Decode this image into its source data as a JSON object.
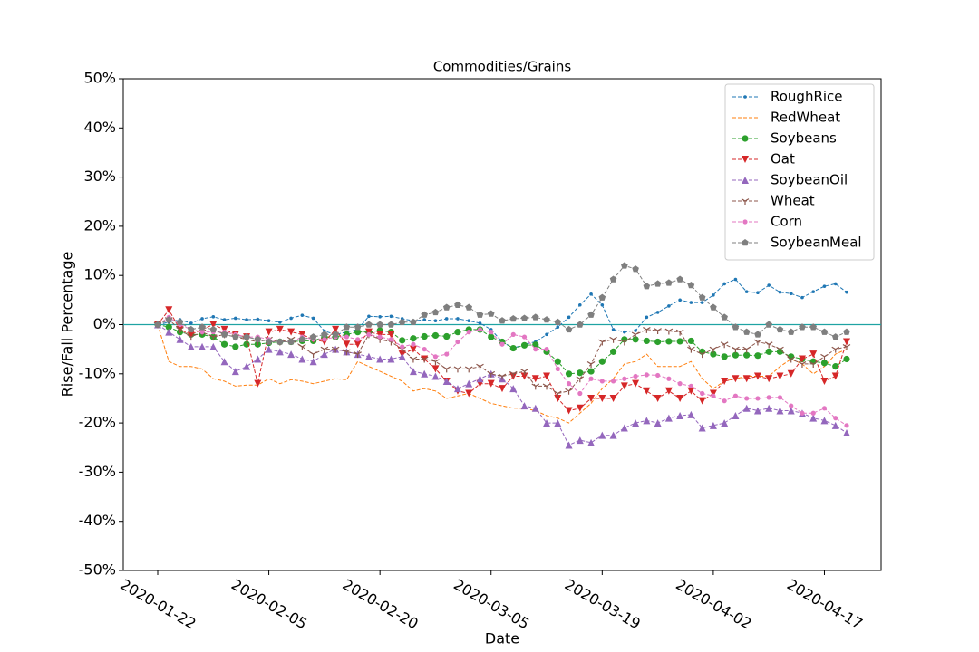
{
  "chart_data": {
    "type": "line",
    "title": "Commodities/Grains",
    "x_label": "Date",
    "y_label": "Rise/Fall Percentage",
    "categories": [
      "2020-01-22",
      null,
      null,
      null,
      null,
      null,
      null,
      null,
      null,
      null,
      "2020-02-05",
      null,
      null,
      null,
      null,
      null,
      null,
      null,
      null,
      null,
      "2020-02-20",
      null,
      null,
      null,
      null,
      null,
      null,
      null,
      null,
      null,
      "2020-03-05",
      null,
      null,
      null,
      null,
      null,
      null,
      null,
      null,
      null,
      "2020-03-19",
      null,
      null,
      null,
      null,
      null,
      null,
      null,
      null,
      null,
      "2020-04-02",
      null,
      null,
      null,
      null,
      null,
      null,
      null,
      null,
      null,
      "2020-04-17",
      null,
      null
    ],
    "ylim": [
      -50,
      50
    ],
    "yticks": [
      {
        "value": -50,
        "label": "-50%"
      },
      {
        "value": -40,
        "label": "-40%"
      },
      {
        "value": -30,
        "label": "-30%"
      },
      {
        "value": -20,
        "label": "-20%"
      },
      {
        "value": -10,
        "label": "-10%"
      },
      {
        "value": 0,
        "label": "0%"
      },
      {
        "value": 10,
        "label": "10%"
      },
      {
        "value": 20,
        "label": "20%"
      },
      {
        "value": 30,
        "label": "30%"
      },
      {
        "value": 40,
        "label": "40%"
      },
      {
        "value": 50,
        "label": "50%"
      }
    ],
    "grid": false,
    "legend": "upper right",
    "reference_line": {
      "value": 0,
      "color": "#1fa3a3"
    },
    "series": [
      {
        "name": "RoughRice",
        "color": "#1f77b4",
        "marker": "point",
        "values": [
          0,
          0.5,
          1,
          0.3,
          1.2,
          1.6,
          1,
          1.3,
          1,
          1.1,
          0.8,
          0.5,
          1.3,
          1.9,
          1.3,
          -1.3,
          -2,
          -1.5,
          -1,
          1.7,
          1.6,
          1.7,
          1.2,
          0.8,
          1.0,
          0.8,
          1.2,
          1.2,
          0.8,
          0.3,
          -1,
          -3.5,
          -4.8,
          -4,
          -3.5,
          -2,
          -0.5,
          1.5,
          4,
          6.2,
          4,
          -1,
          -1.5,
          -1.2,
          1.5,
          2.5,
          3.8,
          5,
          4.5,
          4.5,
          6,
          8.3,
          9.2,
          6.7,
          6.5,
          8,
          6.6,
          6.3,
          5.5,
          6.7,
          7.8,
          8.3,
          6.6
        ]
      },
      {
        "name": "RedWheat",
        "color": "#ff7f0e",
        "marker": "none",
        "values": [
          0,
          -7.5,
          -8.5,
          -8.5,
          -9,
          -11,
          -11.5,
          -12.5,
          -12.3,
          -12.3,
          -11,
          -12,
          -11.2,
          -11.5,
          -12,
          -11.5,
          -11,
          -11.2,
          -7.5,
          -8.5,
          -9.5,
          -10.5,
          -11.5,
          -13.5,
          -13,
          -13.5,
          -15,
          -14.5,
          -14,
          -15,
          -16,
          -16.5,
          -17,
          -17,
          -17.5,
          -18.5,
          -19,
          -20,
          -18,
          -16,
          -13,
          -11,
          -8,
          -7.5,
          -6,
          -8.5,
          -8.5,
          -8.5,
          -7.5,
          -11,
          -13,
          -11.5,
          -11,
          -10.5,
          -10.5,
          -10.5,
          -8.5,
          -7,
          -8,
          -10,
          -8.5,
          -6,
          -5
        ]
      },
      {
        "name": "Soybeans",
        "color": "#2ca02c",
        "marker": "circle",
        "values": [
          0,
          -0.5,
          -1.5,
          -2,
          -2,
          -2.5,
          -4,
          -4.5,
          -4,
          -4,
          -3.7,
          -3.5,
          -3.5,
          -3.3,
          -3.3,
          -2.5,
          -2.5,
          -2,
          -1.5,
          -1.5,
          -1.2,
          -1.5,
          -3.2,
          -2.8,
          -2.4,
          -2.2,
          -2.4,
          -1.5,
          -1,
          -1,
          -2.5,
          -3.5,
          -4.8,
          -4.2,
          -4.1,
          -5.5,
          -7.5,
          -10,
          -9.8,
          -9.5,
          -7.5,
          -5.5,
          -3,
          -3,
          -3.3,
          -3.5,
          -3.4,
          -3.4,
          -3.3,
          -5.5,
          -6,
          -6.5,
          -6.2,
          -6.2,
          -6.3,
          -5.5,
          -5.5,
          -6.5,
          -7,
          -7.5,
          -7.8,
          -8.5,
          -7
        ]
      },
      {
        "name": "Oat",
        "color": "#d62728",
        "marker": "triangle_down",
        "values": [
          0,
          3,
          -1,
          -2,
          -1,
          0,
          -1,
          -2,
          -2.5,
          -12,
          -1.5,
          -1,
          -1.5,
          -2,
          -3,
          -3.5,
          -1,
          -4,
          -4,
          -1.5,
          -2,
          -2,
          -6,
          -5,
          -7,
          -9,
          -11.5,
          -13.5,
          -14,
          -12,
          -12,
          -13,
          -10.5,
          -10.5,
          -11,
          -10.5,
          -15,
          -17.5,
          -17,
          -15,
          -15,
          -15,
          -12.5,
          -12,
          -13.5,
          -15,
          -13.5,
          -15,
          -13.5,
          -15.5,
          -14,
          -11.5,
          -11,
          -11,
          -10.5,
          -11,
          -10.5,
          -10,
          -7,
          -6,
          -11.5,
          -10.5,
          -3.5
        ]
      },
      {
        "name": "SoybeanOil",
        "color": "#9467bd",
        "marker": "triangle_up",
        "values": [
          0,
          -1.5,
          -3,
          -4.5,
          -4.5,
          -4.5,
          -7.5,
          -9.5,
          -8.5,
          -7,
          -5,
          -5.5,
          -6,
          -7,
          -7.5,
          -6,
          -5,
          -5.5,
          -6,
          -6.5,
          -7,
          -7,
          -6.5,
          -9.5,
          -10,
          -10.5,
          -11.5,
          -13,
          -12,
          -11,
          -10,
          -11,
          -13,
          -16.5,
          -17,
          -20,
          -20,
          -24.5,
          -23.5,
          -24,
          -22.5,
          -22.5,
          -21,
          -20,
          -19.5,
          -20,
          -19,
          -18.5,
          -18.3,
          -21,
          -20.5,
          -20,
          -18.5,
          -17,
          -17.5,
          -17,
          -17.5,
          -17.5,
          -18,
          -19,
          -19.5,
          -20.5,
          -22
        ]
      },
      {
        "name": "Wheat",
        "color": "#8c564b",
        "marker": "tri_down",
        "values": [
          0,
          1,
          -1,
          -2.5,
          -1.5,
          -2.5,
          -2,
          -2.5,
          -3,
          -3.5,
          -3,
          -3.5,
          -3,
          -4.5,
          -6,
          -5,
          -5,
          -5.5,
          -6,
          -2,
          -3,
          -3.5,
          -5,
          -7,
          -7,
          -7.5,
          -9,
          -9,
          -9,
          -8.5,
          -10,
          -10.5,
          -10,
          -9.5,
          -12.5,
          -12.5,
          -14,
          -13.5,
          -11,
          -8,
          -3.5,
          -3,
          -3.5,
          -2,
          -1,
          -1.2,
          -1.3,
          -1.5,
          -5,
          -6,
          -5,
          -4,
          -5,
          -5,
          -3.5,
          -4,
          -5,
          -7,
          -8,
          -8,
          -6.5,
          -5,
          -4.5
        ]
      },
      {
        "name": "Corn",
        "color": "#e377c2",
        "marker": "small_circle",
        "values": [
          0,
          1.5,
          0,
          -1,
          -1.5,
          -1.5,
          -1.5,
          -2,
          -2.5,
          -2.5,
          -3,
          -3.5,
          -3.5,
          -2.5,
          -3,
          -3,
          -2.5,
          -2.5,
          -3,
          -2,
          -2.5,
          -3,
          -4.5,
          -4,
          -5,
          -6.5,
          -6,
          -3.5,
          -1.5,
          -1,
          -1.5,
          -4,
          -2,
          -2.5,
          -5,
          -5,
          -9,
          -12,
          -14,
          -11,
          -11.5,
          -11.5,
          -11,
          -10.5,
          -10.2,
          -10.3,
          -11,
          -12,
          -12.5,
          -14,
          -14.5,
          -15.5,
          -14.5,
          -15,
          -15,
          -14.8,
          -14.8,
          -16.5,
          -18,
          -18,
          -17,
          -19,
          -20.5
        ]
      },
      {
        "name": "SoybeanMeal",
        "color": "#7f7f7f",
        "marker": "pentagon",
        "values": [
          0,
          1,
          0.5,
          -1,
          -0.5,
          -1,
          -2,
          -2.5,
          -2.5,
          -3,
          -3.5,
          -3.5,
          -3.5,
          -3,
          -2.5,
          -2,
          -2,
          -0.5,
          -0.5,
          0,
          0,
          0,
          0.5,
          0.5,
          2,
          2.5,
          3.5,
          4,
          3.5,
          2,
          2.2,
          0.8,
          1.2,
          1.3,
          1.5,
          1,
          0.5,
          -1,
          0,
          2,
          5.5,
          9.2,
          12,
          11.3,
          7.8,
          8.3,
          8.5,
          9.2,
          8,
          5.5,
          3.5,
          1.5,
          -0.5,
          -1.5,
          -2,
          0,
          -1,
          -1.5,
          -0.5,
          -0.5,
          -1.5,
          -2.5,
          -1.5
        ]
      }
    ]
  }
}
